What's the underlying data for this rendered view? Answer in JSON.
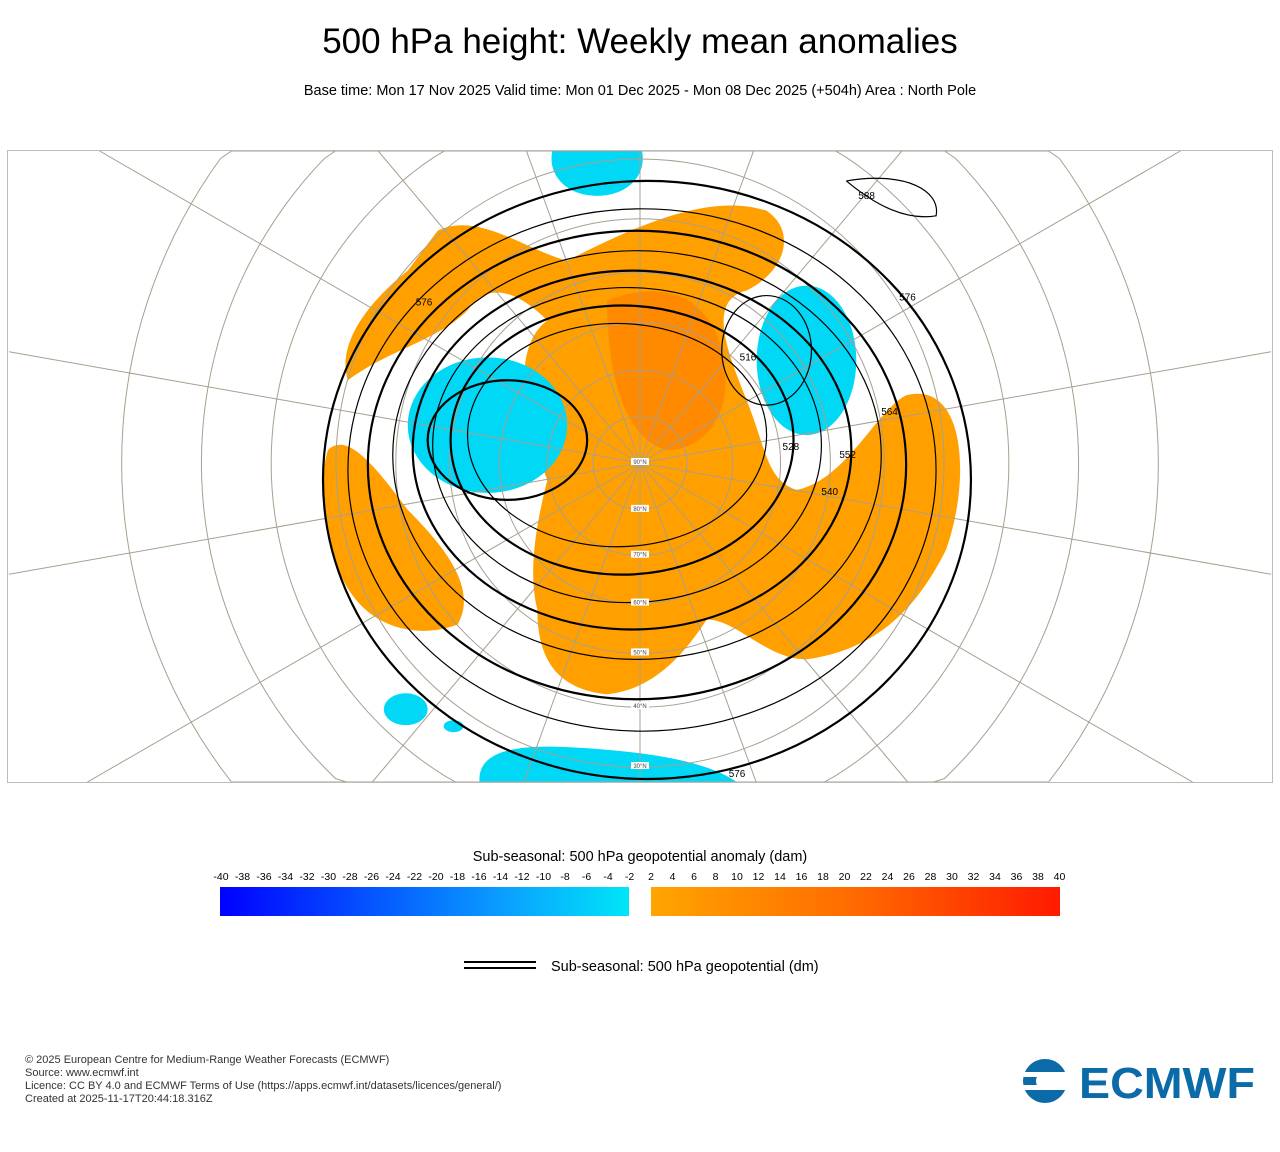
{
  "header": {
    "title": "500 hPa height: Weekly mean anomalies",
    "subtitle": "Base time: Mon 17 Nov 2025 Valid time: Mon 01 Dec 2025 - Mon 08 Dec 2025 (+504h) Area : North Pole"
  },
  "map": {
    "projection": "polar stereographic",
    "area": "North Pole",
    "latitude_labels": [
      "90°N",
      "80°N",
      "70°N",
      "60°N",
      "50°N",
      "40°N",
      "30°N"
    ],
    "contour_labels": [
      "588",
      "576",
      "576",
      "564",
      "552",
      "540",
      "528",
      "516",
      "576"
    ],
    "colors": {
      "positive_anomaly": "#ffa000",
      "strong_positive": "#ff7a00",
      "negative_anomaly": "#00d8f5",
      "contour": "#000000",
      "graticule": "#a89f8f"
    }
  },
  "colorbar": {
    "title": "Sub-seasonal: 500 hPa geopotential anomaly (dam)",
    "ticks": [
      "-40",
      "-38",
      "-36",
      "-34",
      "-32",
      "-30",
      "-28",
      "-26",
      "-24",
      "-22",
      "-20",
      "-18",
      "-16",
      "-14",
      "-12",
      "-10",
      "-8",
      "-6",
      "-4",
      "-2",
      "2",
      "4",
      "6",
      "8",
      "10",
      "12",
      "14",
      "16",
      "18",
      "20",
      "22",
      "24",
      "26",
      "28",
      "30",
      "32",
      "34",
      "36",
      "38",
      "40"
    ],
    "negative_colors": [
      "#0000ff",
      "#0aa0ff",
      "#00e6f8"
    ],
    "positive_colors": [
      "#ffa500",
      "#ff6a00",
      "#ff1a00"
    ]
  },
  "contour_legend": {
    "label": "Sub-seasonal: 500 hPa geopotential (dm)"
  },
  "footer": {
    "lines": [
      "© 2025 European Centre for Medium-Range Weather Forecasts (ECMWF)",
      "Source: www.ecmwf.int",
      "Licence: CC BY 4.0 and ECMWF Terms of Use (https://apps.ecmwf.int/datasets/licences/general/)",
      "Created at 2025-11-17T20:44:18.316Z"
    ],
    "logo_text": "ECMWF",
    "logo_color": "#0b6aa8"
  }
}
